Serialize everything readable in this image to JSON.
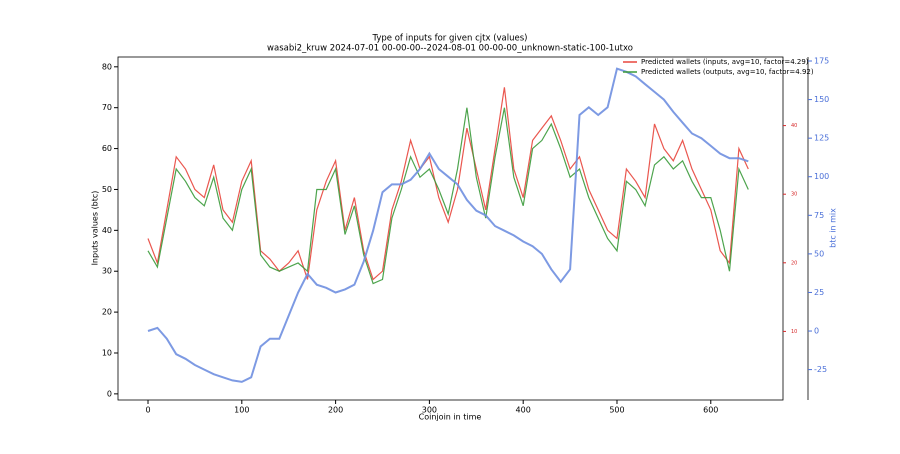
{
  "chart_data": {
    "type": "line",
    "title": "Type of inputs for given cjtx (values)",
    "subtitle": "wasabi2_kruw 2024-07-01 00-00-00--2024-08-01 00-00-00_unknown-static-100-1utxo",
    "xlabel": "Coinjoin in time",
    "ylabel": "Inputs values (btc)",
    "y3label": "btc in mix",
    "x": [
      0,
      10,
      20,
      30,
      40,
      50,
      60,
      70,
      80,
      90,
      100,
      110,
      120,
      130,
      140,
      150,
      160,
      170,
      180,
      190,
      200,
      210,
      220,
      230,
      240,
      250,
      260,
      270,
      280,
      290,
      300,
      310,
      320,
      330,
      340,
      350,
      360,
      370,
      380,
      390,
      400,
      410,
      420,
      430,
      440,
      450,
      460,
      470,
      480,
      490,
      500,
      510,
      520,
      530,
      540,
      550,
      560,
      570,
      580,
      590,
      600,
      610,
      620,
      630,
      640
    ],
    "series": [
      {
        "name": "Predicted wallets (inputs, avg=10, factor=4.29)",
        "color": "#e8453c",
        "axis": "y",
        "values": [
          38,
          32,
          45,
          58,
          55,
          50,
          48,
          56,
          45,
          42,
          52,
          57,
          35,
          33,
          30,
          32,
          35,
          28,
          45,
          52,
          57,
          40,
          48,
          35,
          28,
          30,
          45,
          52,
          62,
          55,
          58,
          48,
          42,
          50,
          65,
          55,
          45,
          60,
          75,
          55,
          48,
          62,
          65,
          68,
          62,
          55,
          58,
          50,
          45,
          40,
          38,
          55,
          52,
          48,
          66,
          60,
          57,
          62,
          55,
          50,
          45,
          35,
          32,
          60,
          55
        ]
      },
      {
        "name": "Predicted wallets (outputs, avg=10, factor=4.92)",
        "color": "#3a9a3a",
        "axis": "y",
        "values": [
          35,
          31,
          43,
          55,
          52,
          48,
          46,
          53,
          43,
          40,
          50,
          55,
          34,
          31,
          30,
          31,
          32,
          30,
          50,
          50,
          55,
          39,
          46,
          34,
          27,
          28,
          43,
          50,
          58,
          53,
          55,
          50,
          44,
          55,
          70,
          53,
          43,
          58,
          70,
          53,
          46,
          60,
          62,
          66,
          60,
          53,
          55,
          48,
          43,
          38,
          35,
          52,
          50,
          46,
          56,
          58,
          55,
          57,
          52,
          48,
          48,
          40,
          30,
          55,
          50
        ]
      },
      {
        "color": "#6f8fe0",
        "axis": "y3",
        "values": [
          0,
          2,
          -5,
          -15,
          -18,
          -22,
          -25,
          -28,
          -30,
          -32,
          -33,
          -30,
          -10,
          -5,
          -5,
          10,
          25,
          37,
          30,
          28,
          25,
          27,
          30,
          45,
          65,
          90,
          95,
          95,
          98,
          105,
          115,
          105,
          100,
          95,
          85,
          78,
          75,
          68,
          65,
          62,
          58,
          55,
          50,
          40,
          32,
          40,
          140,
          145,
          140,
          145,
          170,
          168,
          165,
          160,
          155,
          150,
          142,
          135,
          128,
          125,
          120,
          115,
          112,
          112,
          110
        ]
      }
    ],
    "xlim": [
      -32,
      677
    ],
    "xticks": [
      0,
      100,
      200,
      300,
      400,
      500,
      600
    ],
    "ylim": [
      -1.5,
      82.4
    ],
    "yticks": [
      0,
      10,
      20,
      30,
      40,
      50,
      60,
      70,
      80
    ],
    "y2lim": [
      0,
      50
    ],
    "y2ticks": [
      10,
      20,
      30,
      40
    ],
    "y2color": "#d62728",
    "y3lim": [
      -44.7,
      177.6
    ],
    "y3ticks": [
      -25,
      0,
      25,
      50,
      75,
      100,
      125,
      150,
      175
    ],
    "y3color": "#4a6fd8",
    "legend": "upper right"
  }
}
